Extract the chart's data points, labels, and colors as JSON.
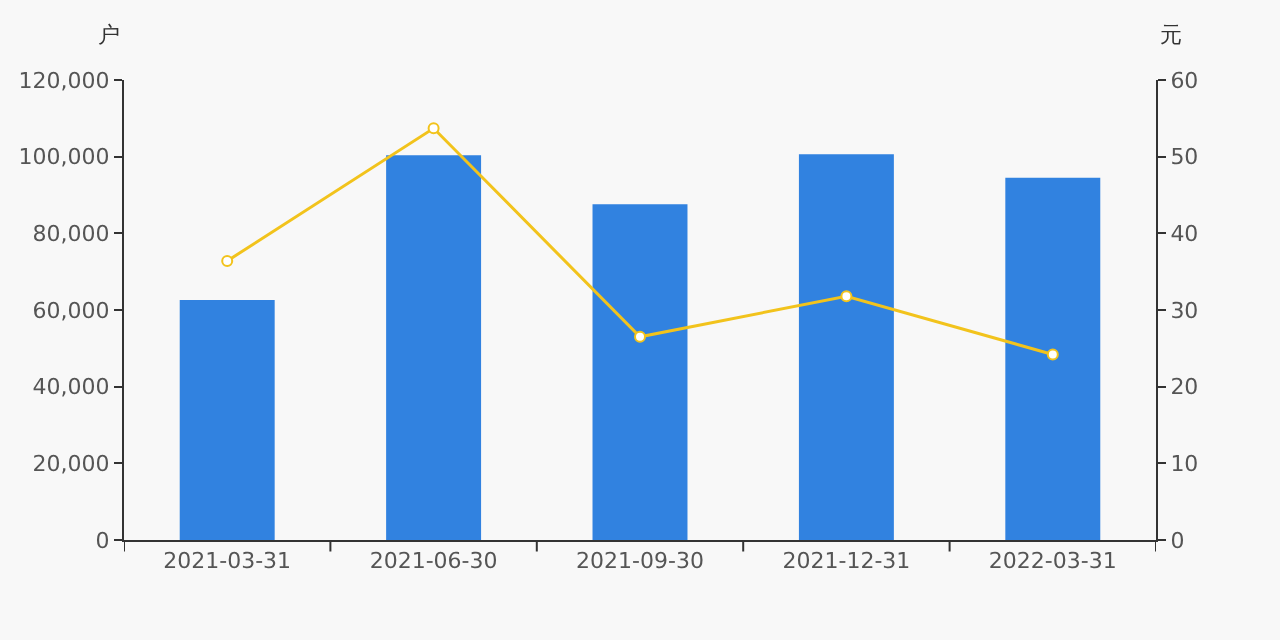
{
  "chart_data": {
    "type": "bar",
    "ylabel": "户",
    "y2label": "元",
    "categories": [
      "2021-03-31",
      "2021-06-30",
      "2021-09-30",
      "2021-12-31",
      "2022-03-31"
    ],
    "series": [
      {
        "color": "#3182e0",
        "values": [
          62600,
          100400,
          87600,
          100600,
          94500
        ]
      },
      {
        "type": "line",
        "axis": "y2",
        "color": "#f2c31c",
        "marker": "circle",
        "values": [
          36.4,
          53.7,
          26.5,
          31.8,
          24.2
        ]
      }
    ],
    "ylim": [
      0,
      120000
    ],
    "yticks": [
      {
        "value": 0,
        "label": "0"
      },
      {
        "value": 20000,
        "label": "20,000"
      },
      {
        "value": 40000,
        "label": "40,000"
      },
      {
        "value": 60000,
        "label": "60,000"
      },
      {
        "value": 80000,
        "label": "80,000"
      },
      {
        "value": 100000,
        "label": "100,000"
      },
      {
        "value": 120000,
        "label": "120,000"
      }
    ],
    "y2lim": [
      0,
      60
    ],
    "y2ticks": [
      0,
      10,
      20,
      30,
      40,
      50,
      60
    ],
    "grid": false
  }
}
